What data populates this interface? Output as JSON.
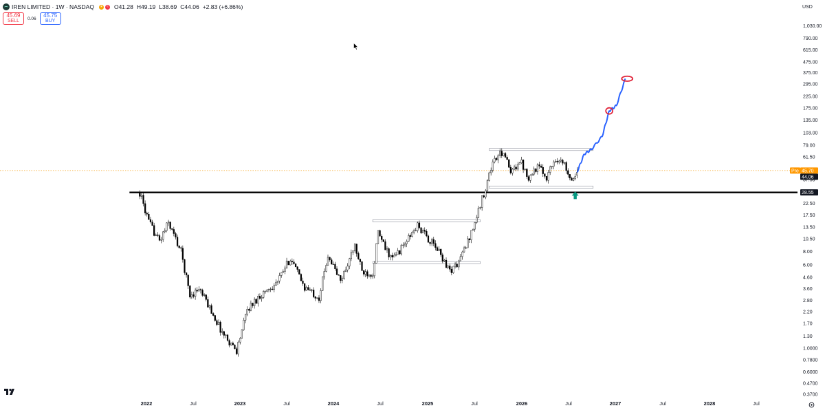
{
  "header": {
    "title": "IREN LIMITED · 1W · NASDAQ",
    "open": "O41.28",
    "high": "H49.19",
    "low": "L38.69",
    "close": "C44.06",
    "change": "+2.83 (+6.86%)"
  },
  "trade": {
    "sell_price": "45.69",
    "sell_label": "SELL",
    "spread": "0.06",
    "buy_price": "45.75",
    "buy_label": "BUY"
  },
  "currency": "USD",
  "icons": [
    "symbol-logo-icon",
    "cursor-icon",
    "tradingview-logo-icon",
    "settings-icon",
    "arrow-up-icon"
  ],
  "colors": {
    "candle_up": "#ffffff",
    "candle_down": "#000000",
    "projection": "#2962ff",
    "target_circle": "#e0243a",
    "arrow": "#089981",
    "pre_badge": "#ff9800",
    "price_badge": "#131722"
  },
  "chart_data": {
    "type": "candlestick",
    "timeframe": "1W",
    "yscale": "log",
    "y_ticks": [
      "1,030.00",
      "790.00",
      "615.00",
      "475.00",
      "375.00",
      "295.00",
      "225.00",
      "175.00",
      "135.00",
      "103.00",
      "79.00",
      "61.50",
      "37.50",
      "22.50",
      "17.50",
      "13.50",
      "10.50",
      "8.00",
      "6.00",
      "4.60",
      "3.60",
      "2.80",
      "2.20",
      "1.70",
      "1.30",
      "1.0000",
      "0.7800",
      "0.6000",
      "0.4700",
      "0.3700"
    ],
    "x_ticks": [
      "2022",
      "Jul",
      "2023",
      "Jul",
      "2024",
      "Jul",
      "2025",
      "Jul",
      "2026",
      "Jul",
      "2027",
      "Jul",
      "2028",
      "Jul"
    ],
    "x_bold_ticks": [
      "2022",
      "2023",
      "2024",
      "2025",
      "2026",
      "2027",
      "2028"
    ],
    "price_labels": {
      "pre_label": "Pre",
      "pre_price": "45.70",
      "last_price": "44.06",
      "level_price": "28.55"
    },
    "series_close_path": [
      {
        "date": "2021-12-06",
        "close": 28.5
      },
      {
        "date": "2022-01-10",
        "close": 15
      },
      {
        "date": "2022-02-21",
        "close": 10
      },
      {
        "date": "2022-03-28",
        "close": 15
      },
      {
        "date": "2022-05-16",
        "close": 8
      },
      {
        "date": "2022-06-20",
        "close": 3.1
      },
      {
        "date": "2022-07-25",
        "close": 3.6
      },
      {
        "date": "2022-09-05",
        "close": 2.4
      },
      {
        "date": "2022-10-24",
        "close": 1.4
      },
      {
        "date": "2022-12-19",
        "close": 0.95
      },
      {
        "date": "2023-01-30",
        "close": 2.3
      },
      {
        "date": "2023-03-20",
        "close": 3.1
      },
      {
        "date": "2023-05-29",
        "close": 4.2
      },
      {
        "date": "2023-07-17",
        "close": 7.0
      },
      {
        "date": "2023-09-11",
        "close": 3.7
      },
      {
        "date": "2023-11-06",
        "close": 3.0
      },
      {
        "date": "2023-12-11",
        "close": 7.5
      },
      {
        "date": "2024-01-29",
        "close": 4.2
      },
      {
        "date": "2024-03-25",
        "close": 9.0
      },
      {
        "date": "2024-04-22",
        "close": 5.2
      },
      {
        "date": "2024-06-03",
        "close": 5.0
      },
      {
        "date": "2024-06-24",
        "close": 12.0
      },
      {
        "date": "2024-07-22",
        "close": 8.5
      },
      {
        "date": "2024-08-19",
        "close": 6.8
      },
      {
        "date": "2024-10-07",
        "close": 9.5
      },
      {
        "date": "2024-11-25",
        "close": 14.0
      },
      {
        "date": "2024-12-30",
        "close": 11.0
      },
      {
        "date": "2025-02-17",
        "close": 8.0
      },
      {
        "date": "2025-03-31",
        "close": 5.3
      },
      {
        "date": "2025-04-28",
        "close": 6.0
      },
      {
        "date": "2025-06-02",
        "close": 9.0
      },
      {
        "date": "2025-07-07",
        "close": 15.0
      },
      {
        "date": "2025-08-11",
        "close": 28.0
      },
      {
        "date": "2025-09-15",
        "close": 55.0
      },
      {
        "date": "2025-10-27",
        "close": 70.0
      },
      {
        "date": "2025-11-24",
        "close": 42.0
      },
      {
        "date": "2025-12-29",
        "close": 58.0
      },
      {
        "date": "2026-02-02",
        "close": 40.0
      },
      {
        "date": "2026-03-09",
        "close": 50.0
      },
      {
        "date": "2026-04-13",
        "close": 40.0
      },
      {
        "date": "2026-05-18",
        "close": 60.0
      },
      {
        "date": "2026-06-22",
        "close": 52.0
      },
      {
        "date": "2026-07-20",
        "close": 38.0
      },
      {
        "date": "2026-08-10",
        "close": 44.06
      }
    ],
    "projection": [
      {
        "date": "2026-08-10",
        "value": 44
      },
      {
        "date": "2026-09-07",
        "value": 65
      },
      {
        "date": "2026-10-05",
        "value": 72
      },
      {
        "date": "2026-11-16",
        "value": 95
      },
      {
        "date": "2026-12-14",
        "value": 165
      },
      {
        "date": "2027-01-11",
        "value": 185
      },
      {
        "date": "2027-02-15",
        "value": 330
      }
    ],
    "targets": [
      {
        "date": "2026-12-14",
        "value": 165
      },
      {
        "date": "2027-02-22",
        "value": 330
      }
    ],
    "horizontal_line": {
      "value": 28.55,
      "from": "2021-12-06"
    },
    "ranges": [
      {
        "from": "2024-06-03",
        "to": "2025-07-28",
        "top": 15.5,
        "bottom": 6.3
      },
      {
        "from": "2025-09-01",
        "to": "2026-10-12",
        "top": 72,
        "bottom": 32
      }
    ],
    "arrow": {
      "date": "2026-08-03",
      "value": 27
    },
    "grid": false
  }
}
